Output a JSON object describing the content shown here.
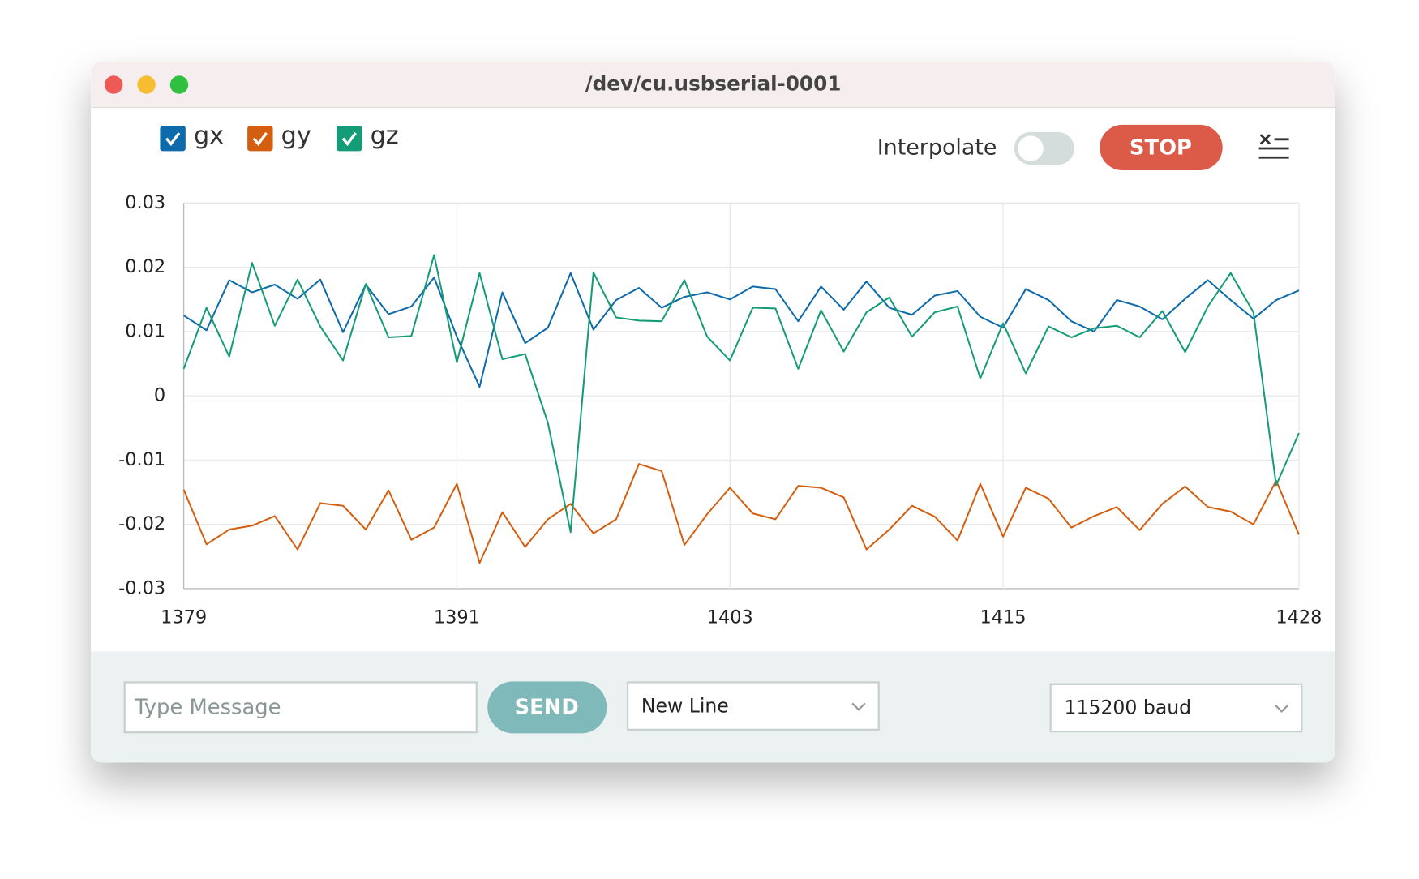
{
  "window_title": "/dev/cu.usbserial-0001",
  "controls": {
    "interpolate": "Interpolate",
    "stop": "STOP",
    "message_placeholder": "Type Message",
    "send": "SEND",
    "line_ending": "New Line",
    "baud": "115200 baud"
  },
  "chart_data": {
    "type": "line",
    "x": [
      1379,
      1380,
      1381,
      1382,
      1383,
      1384,
      1385,
      1386,
      1387,
      1388,
      1389,
      1390,
      1391,
      1392,
      1393,
      1394,
      1395,
      1396,
      1397,
      1398,
      1399,
      1400,
      1401,
      1402,
      1403,
      1404,
      1405,
      1406,
      1407,
      1408,
      1409,
      1410,
      1411,
      1412,
      1413,
      1414,
      1415,
      1416,
      1417,
      1418,
      1419,
      1420,
      1421,
      1422,
      1423,
      1424,
      1425,
      1426,
      1427,
      1428
    ],
    "xlim": [
      1379,
      1428
    ],
    "xticks": [
      1379,
      1391,
      1403,
      1415,
      1428
    ],
    "ylim": [
      -0.03,
      0.03
    ],
    "yticks": [
      -0.03,
      -0.02,
      -0.01,
      0,
      0.01,
      0.02,
      0.03
    ],
    "grid": true,
    "series": [
      {
        "name": "gx",
        "color": "#0d6aab",
        "values": [
          0.0125,
          0.0102,
          0.018,
          0.0161,
          0.0173,
          0.0151,
          0.0181,
          0.0099,
          0.0173,
          0.0127,
          0.0139,
          0.0184,
          0.0092,
          0.0014,
          0.0161,
          0.0082,
          0.0106,
          0.0191,
          0.0103,
          0.0149,
          0.0168,
          0.0137,
          0.0154,
          0.0161,
          0.015,
          0.017,
          0.0166,
          0.0116,
          0.017,
          0.0134,
          0.0178,
          0.0137,
          0.0126,
          0.0156,
          0.0163,
          0.0123,
          0.0106,
          0.0166,
          0.0149,
          0.0116,
          0.01,
          0.0149,
          0.0139,
          0.0119,
          0.0151,
          0.018,
          0.0149,
          0.012,
          0.0149,
          0.0164
        ]
      },
      {
        "name": "gy",
        "color": "#d45e0f",
        "values": [
          -0.0146,
          -0.0231,
          -0.0208,
          -0.0202,
          -0.0187,
          -0.0239,
          -0.0167,
          -0.0171,
          -0.0208,
          -0.0147,
          -0.0224,
          -0.0205,
          -0.0137,
          -0.026,
          -0.0181,
          -0.0235,
          -0.0192,
          -0.0168,
          -0.0214,
          -0.0192,
          -0.0106,
          -0.0117,
          -0.0232,
          -0.0184,
          -0.0143,
          -0.0183,
          -0.0192,
          -0.014,
          -0.0143,
          -0.0158,
          -0.0239,
          -0.0208,
          -0.0171,
          -0.0188,
          -0.0225,
          -0.0137,
          -0.0219,
          -0.0143,
          -0.016,
          -0.0205,
          -0.0187,
          -0.0173,
          -0.0209,
          -0.0168,
          -0.0141,
          -0.0173,
          -0.018,
          -0.02,
          -0.0132,
          -0.0216
        ]
      },
      {
        "name": "gz",
        "color": "#149b77",
        "values": [
          0.0042,
          0.0137,
          0.0061,
          0.0207,
          0.0109,
          0.0181,
          0.0108,
          0.0055,
          0.0174,
          0.0091,
          0.0093,
          0.0219,
          0.0052,
          0.0191,
          0.0057,
          0.0065,
          -0.0042,
          -0.0212,
          0.0192,
          0.0122,
          0.0117,
          0.0116,
          0.018,
          0.0092,
          0.0055,
          0.0137,
          0.0136,
          0.0042,
          0.0133,
          0.0069,
          0.013,
          0.0153,
          0.0092,
          0.013,
          0.0139,
          0.0027,
          0.0113,
          0.0035,
          0.0108,
          0.0091,
          0.0105,
          0.0109,
          0.0091,
          0.0132,
          0.0068,
          0.0139,
          0.0191,
          0.013,
          -0.0139,
          -0.0058
        ]
      }
    ]
  }
}
